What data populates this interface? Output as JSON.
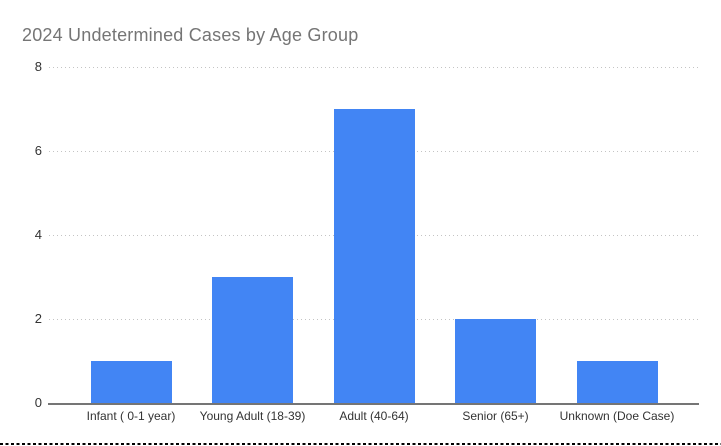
{
  "title": "2024 Undetermined Cases by Age Group",
  "chart_data": {
    "type": "bar",
    "title": "2024 Undetermined Cases by Age Group",
    "categories": [
      "Infant ( 0-1 year)",
      "Young Adult (18-39)",
      "Adult (40-64)",
      "Senior (65+)",
      "Unknown (Doe Case)"
    ],
    "values": [
      1,
      3,
      7,
      2,
      1
    ],
    "xlabel": "",
    "ylabel": "",
    "ylim": [
      0,
      8
    ],
    "yticks": [
      0,
      2,
      4,
      6,
      8
    ],
    "grid": true,
    "gridline_style": "dotted",
    "legend": "none",
    "bar_color": "#4285f4"
  },
  "colors": {
    "background": "#ffffff",
    "title_text": "#757575",
    "axis_label_text": "#333333",
    "axis_line": "#757575",
    "gridline": "#c4c4c4",
    "bar": "#4285f4",
    "selection_dash": "#000000"
  }
}
